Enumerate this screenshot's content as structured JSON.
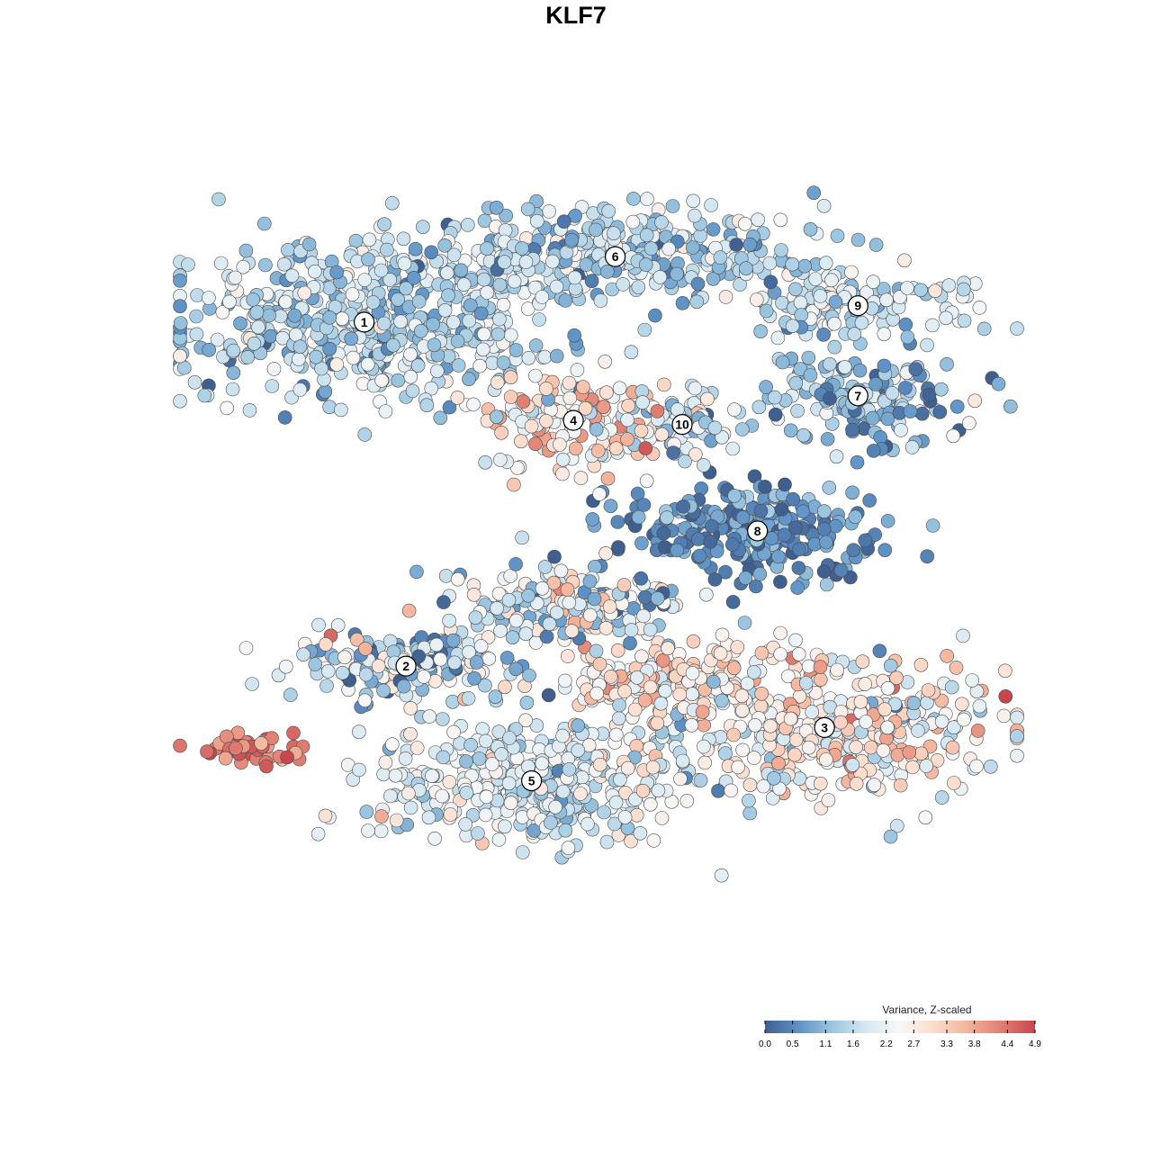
{
  "chart_data": {
    "type": "scatter",
    "title": "KLF7",
    "xlabel": "",
    "ylabel": "",
    "grid": false,
    "legend": {
      "title": "Variance, Z-scaled",
      "placement": "bottom-right",
      "ticks": [
        "0.0",
        "0.5",
        "1.1",
        "1.6",
        "2.2",
        "2.7",
        "3.3",
        "3.8",
        "4.4",
        "4.9"
      ],
      "range": [
        0.0,
        4.9
      ],
      "colors": [
        "#3f5f8f",
        "#5e92c6",
        "#9cc6e0",
        "#d6e8f2",
        "#f7f7f7",
        "#fcdccc",
        "#f4b39a",
        "#e07f73",
        "#c8464e"
      ]
    },
    "clusters": [
      {
        "label": "1",
        "x": 0.22,
        "y": 0.62,
        "spread": [
          0.115,
          0.1
        ],
        "n": 520,
        "mean_value": 1.55,
        "value_sd": 0.55
      },
      {
        "label": "2",
        "x": 0.27,
        "y": -0.22,
        "spread": [
          0.075,
          0.045
        ],
        "n": 170,
        "mean_value": 1.6,
        "value_sd": 0.85
      },
      {
        "label": "3",
        "x": 0.77,
        "y": -0.37,
        "spread": [
          0.11,
          0.09
        ],
        "n": 430,
        "mean_value": 2.6,
        "value_sd": 0.75
      },
      {
        "label": "4",
        "x": 0.47,
        "y": 0.38,
        "spread": [
          0.06,
          0.06
        ],
        "n": 150,
        "mean_value": 2.7,
        "value_sd": 0.9
      },
      {
        "label": "5",
        "x": 0.42,
        "y": -0.5,
        "spread": [
          0.095,
          0.075
        ],
        "n": 420,
        "mean_value": 1.95,
        "value_sd": 0.5
      },
      {
        "label": "6",
        "x": 0.52,
        "y": 0.78,
        "spread": [
          0.13,
          0.055
        ],
        "n": 360,
        "mean_value": 1.5,
        "value_sd": 0.6
      },
      {
        "label": "7",
        "x": 0.81,
        "y": 0.44,
        "spread": [
          0.07,
          0.05
        ],
        "n": 150,
        "mean_value": 1.1,
        "value_sd": 0.6
      },
      {
        "label": "8",
        "x": 0.69,
        "y": 0.11,
        "spread": [
          0.08,
          0.055
        ],
        "n": 260,
        "mean_value": 0.5,
        "value_sd": 0.45
      },
      {
        "label": "9",
        "x": 0.81,
        "y": 0.66,
        "spread": [
          0.07,
          0.04
        ],
        "n": 120,
        "mean_value": 1.7,
        "value_sd": 0.55
      },
      {
        "label": "10",
        "x": 0.6,
        "y": 0.37,
        "spread": [
          0.035,
          0.04
        ],
        "n": 60,
        "mean_value": 1.6,
        "value_sd": 0.6
      },
      {
        "label": "",
        "x": 0.09,
        "y": -0.42,
        "spread": [
          0.03,
          0.022
        ],
        "n": 45,
        "mean_value": 4.4,
        "value_sd": 0.35
      },
      {
        "label": "",
        "x": 0.46,
        "y": -0.07,
        "spread": [
          0.07,
          0.05
        ],
        "n": 180,
        "mean_value": 1.9,
        "value_sd": 0.9
      },
      {
        "label": "",
        "x": 0.58,
        "y": -0.25,
        "spread": [
          0.06,
          0.05
        ],
        "n": 160,
        "mean_value": 2.8,
        "value_sd": 0.6
      }
    ]
  }
}
